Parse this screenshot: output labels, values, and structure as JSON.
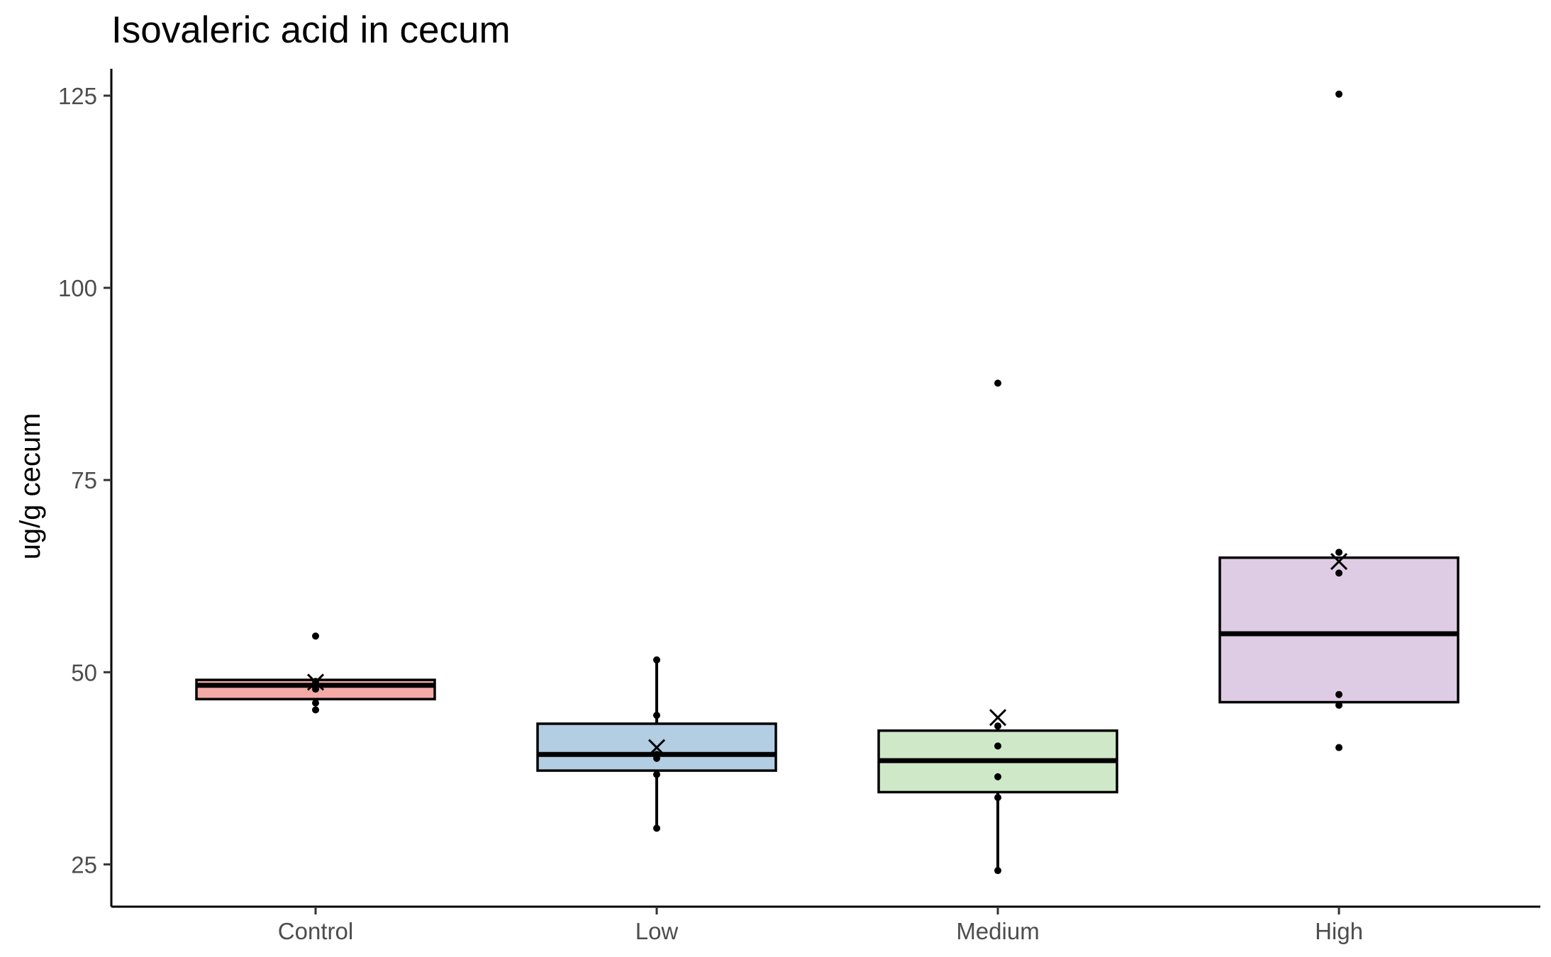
{
  "chart_data": {
    "type": "box",
    "title": "Isovaleric acid in cecum",
    "xlabel": "",
    "ylabel": "ug/g cecum",
    "ylim": [
      19.5,
      128.5
    ],
    "yticks": [
      25,
      50,
      75,
      100,
      125
    ],
    "ytick_labels": [
      "25",
      "50",
      "75",
      "100",
      "125"
    ],
    "categories": [
      "Control",
      "Low",
      "Medium",
      "High"
    ],
    "grid": false,
    "legend": "none",
    "boxes": [
      {
        "category": "Control",
        "fill": "#f4aaa7",
        "whisker_low": 46.5,
        "q1": 46.5,
        "median": 48.3,
        "q3": 49.0,
        "whisker_high": 49.0,
        "mean": 48.7,
        "points": [
          54.7,
          48.8,
          48.3,
          48.1,
          47.8,
          46.0,
          45.1
        ]
      },
      {
        "category": "Low",
        "fill": "#b3cde3",
        "whisker_low": 29.7,
        "q1": 37.2,
        "median": 39.3,
        "q3": 43.3,
        "whisker_high": 51.6,
        "mean": 40.2,
        "points": [
          51.6,
          44.4,
          39.3,
          38.8,
          36.7,
          29.7
        ]
      },
      {
        "category": "Medium",
        "fill": "#cfe9c8",
        "whisker_low": 24.2,
        "q1": 34.4,
        "median": 38.5,
        "q3": 42.4,
        "whisker_high": 42.4,
        "mean": 44.1,
        "points": [
          87.6,
          43.0,
          40.4,
          36.4,
          33.7,
          24.2
        ]
      },
      {
        "category": "High",
        "fill": "#decbe4",
        "whisker_low": 46.1,
        "q1": 46.1,
        "median": 55.0,
        "q3": 64.9,
        "whisker_high": 64.9,
        "mean": 64.4,
        "points": [
          125.2,
          65.6,
          62.9,
          47.1,
          45.7,
          40.2
        ]
      }
    ]
  }
}
